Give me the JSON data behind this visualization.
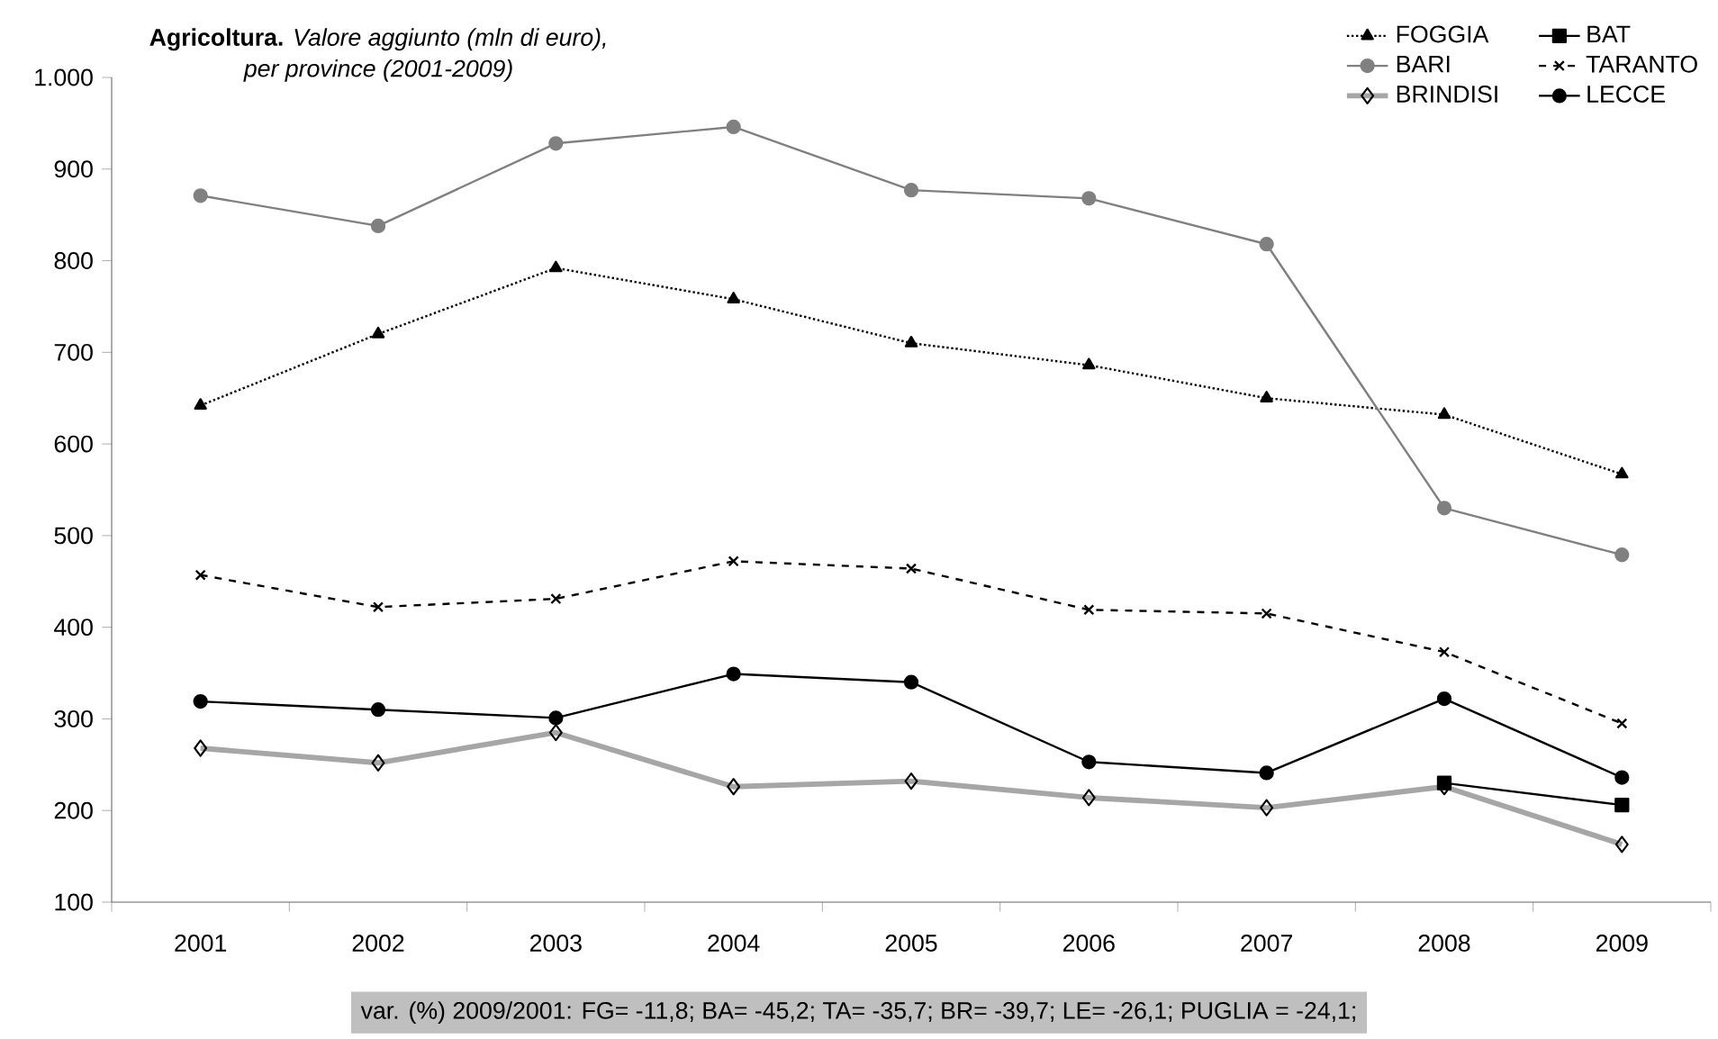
{
  "chart_data": {
    "type": "line",
    "title": "**Agricoltura.** *Valore aggiunto (mln di euro),*",
    "subtitle": "per province (2001-2009)",
    "categories": [
      "2001",
      "2002",
      "2003",
      "2004",
      "2005",
      "2006",
      "2007",
      "2008",
      "2009"
    ],
    "series": [
      {
        "name": "FOGGIA",
        "color": "#000000",
        "marker": "triangle",
        "line_style": "dotted",
        "values": [
          642,
          720,
          792,
          758,
          710,
          686,
          650,
          632,
          567
        ]
      },
      {
        "name": "BAT",
        "color": "#000000",
        "marker": "square",
        "line_style": "solid",
        "values": [
          null,
          null,
          null,
          null,
          null,
          null,
          null,
          230,
          206
        ]
      },
      {
        "name": "BARI",
        "color": "#808080",
        "marker": "circle",
        "line_style": "solid",
        "values": [
          871,
          838,
          928,
          946,
          877,
          868,
          818,
          530,
          479
        ]
      },
      {
        "name": "TARANTO",
        "color": "#000000",
        "marker": "cross",
        "line_style": "dashed",
        "values": [
          457,
          422,
          431,
          472,
          464,
          419,
          415,
          373,
          295
        ]
      },
      {
        "name": "BRINDISI",
        "color": "#a6a6a6",
        "marker": "diamond",
        "line_style": "solid",
        "values": [
          268,
          252,
          285,
          226,
          232,
          214,
          203,
          226,
          163
        ]
      },
      {
        "name": "LECCE",
        "color": "#000000",
        "marker": "circle",
        "line_style": "solid",
        "values": [
          319,
          310,
          301,
          349,
          340,
          253,
          241,
          322,
          236
        ]
      }
    ],
    "ylim": [
      100,
      1000
    ],
    "yticks": [
      100,
      200,
      300,
      400,
      500,
      600,
      700,
      800,
      900,
      {
        "value": 1000,
        "label": "1.000"
      }
    ],
    "grid": false,
    "legend": "top right",
    "annotations": [
      "var. (%) 2009/2001:  FG= -11,8;  BA= -45,2;  TA= -35,7;   BR= -39,7;   LE= -26,1;      PUGLIA = -24,1;"
    ]
  }
}
